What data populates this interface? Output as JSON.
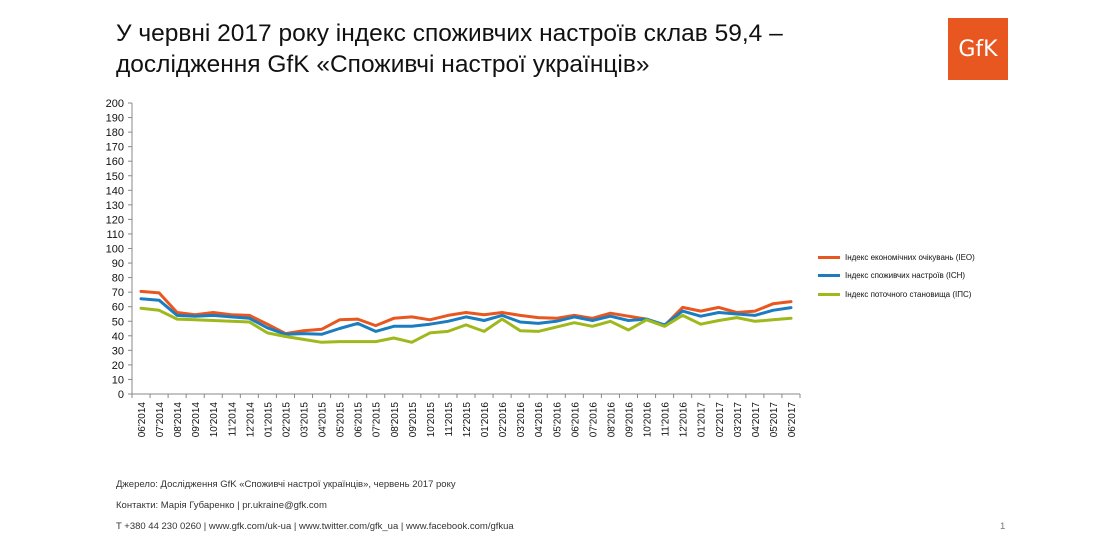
{
  "title": {
    "line1": "У червні 2017 року індекс споживчих настроїв склав 59,4 –",
    "line2": "дослідження GfK «Споживчі настрої українців»"
  },
  "logo": {
    "text": "GfK",
    "color": "#e8571f"
  },
  "footer": {
    "source": "Джерело: Дослідження GfK «Споживчі настрої українців», червень 2017 року",
    "contacts": "Контакти: Марія Губаренко | pr.ukraine@gfk.com",
    "links": "T +380 44 230 0260 | www.gfk.com/uk-ua | www.twitter.com/gfk_ua | www.facebook.com/gfkua",
    "page": "1"
  },
  "chart_data": {
    "type": "line",
    "title": "",
    "xlabel": "",
    "ylabel": "",
    "ylim": [
      0,
      200
    ],
    "ytick_step": 10,
    "grid": false,
    "legend_position": "right",
    "categories": [
      "06'2014",
      "07'2014",
      "08'2014",
      "09'2014",
      "10'2014",
      "11'2014",
      "12'2014",
      "01'2015",
      "02'2015",
      "03'2015",
      "04'2015",
      "05'2015",
      "06'2015",
      "07'2015",
      "08'2015",
      "09'2015",
      "10'2015",
      "11'2015",
      "12'2015",
      "01'2016",
      "02'2016",
      "03'2016",
      "04'2016",
      "05'2016",
      "06'2016",
      "07'2016",
      "08'2016",
      "09'2016",
      "10'2016",
      "11'2016",
      "12'2016",
      "01'2017",
      "02'2017",
      "03'2017",
      "04'2017",
      "05'2017",
      "06'2017"
    ],
    "series": [
      {
        "name": "Індекс економічних очікувань (ІЕО)",
        "color": "#e8571f",
        "values": [
          70.5,
          69.5,
          56,
          54.5,
          56,
          54.5,
          54,
          48,
          41.5,
          43.5,
          44.5,
          51,
          51.5,
          47,
          52,
          53,
          51,
          54,
          56,
          54.5,
          56,
          54,
          52.5,
          52,
          54,
          52,
          55.5,
          53.5,
          51.5,
          47,
          59.5,
          57,
          59.5,
          56,
          57,
          62,
          63.5
        ]
      },
      {
        "name": "Індекс споживчих настроїв (ІСН)",
        "color": "#1b7dbf",
        "values": [
          65.5,
          64.5,
          54,
          53.5,
          54,
          53,
          52,
          45.5,
          41,
          41.5,
          41,
          45,
          48.5,
          43,
          46.5,
          46.5,
          48,
          50,
          53,
          50.5,
          54,
          49.5,
          48.5,
          50,
          53,
          50.5,
          53.5,
          50.5,
          51.5,
          47.5,
          57,
          53.5,
          56,
          55,
          54,
          57.5,
          59.4
        ]
      },
      {
        "name": "Індекс поточного становища (ІПС)",
        "color": "#9fb81c",
        "values": [
          59,
          57.5,
          51.5,
          51,
          50.5,
          50,
          49.5,
          42,
          39.5,
          37.5,
          35.5,
          36,
          36,
          36,
          38.5,
          35.5,
          42,
          43,
          47.5,
          43,
          51.5,
          43.5,
          43,
          46,
          49,
          46.5,
          50,
          44,
          51,
          46.5,
          54,
          48,
          50.5,
          52.5,
          50,
          51,
          52
        ]
      }
    ]
  }
}
